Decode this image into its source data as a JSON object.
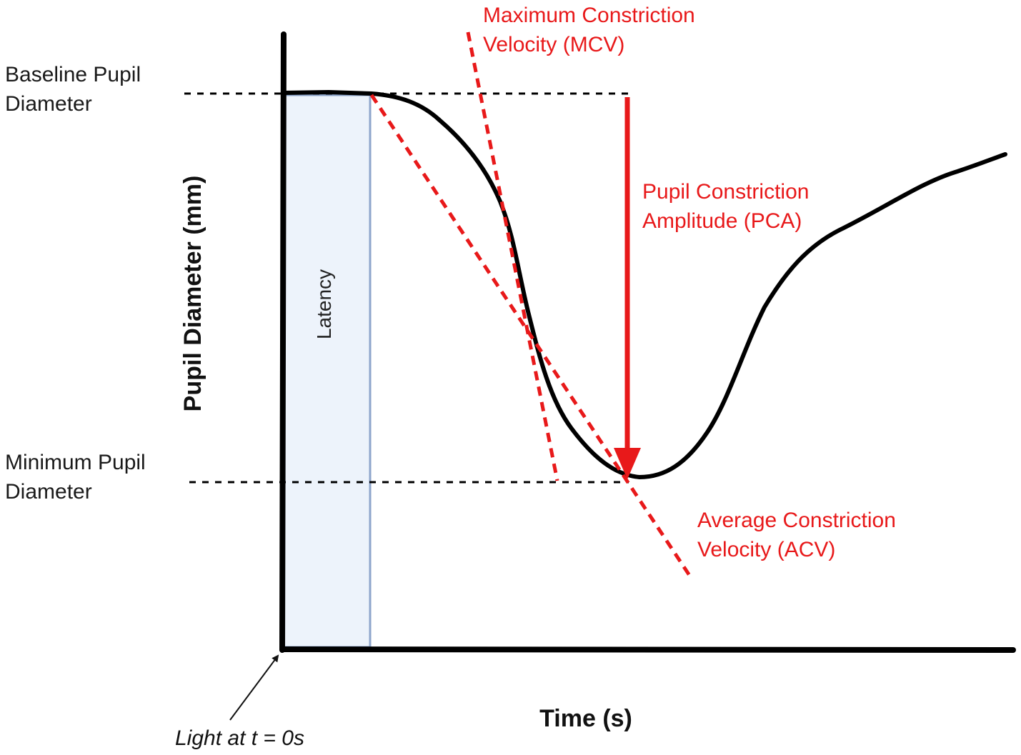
{
  "colors": {
    "curve": "#000000",
    "annotation": "#e8191a",
    "latency_fill": "#edf3fb",
    "latency_border": "#8ea6cb",
    "dashed_reference": "#000000"
  },
  "labels": {
    "y_axis": "Pupil Diameter (mm)",
    "x_axis": "Time (s)",
    "baseline": [
      "Baseline Pupil",
      "Diameter"
    ],
    "minimum": [
      "Minimum Pupil",
      "Diameter"
    ],
    "latency": "Latency",
    "light_start": "Light at t = 0s",
    "mcv": [
      "Maximum Constriction",
      "Velocity (MCV)"
    ],
    "pca": [
      "Pupil Constriction",
      "Amplitude (PCA)"
    ],
    "acv": [
      "Average Constriction",
      "Velocity (ACV)"
    ]
  }
}
